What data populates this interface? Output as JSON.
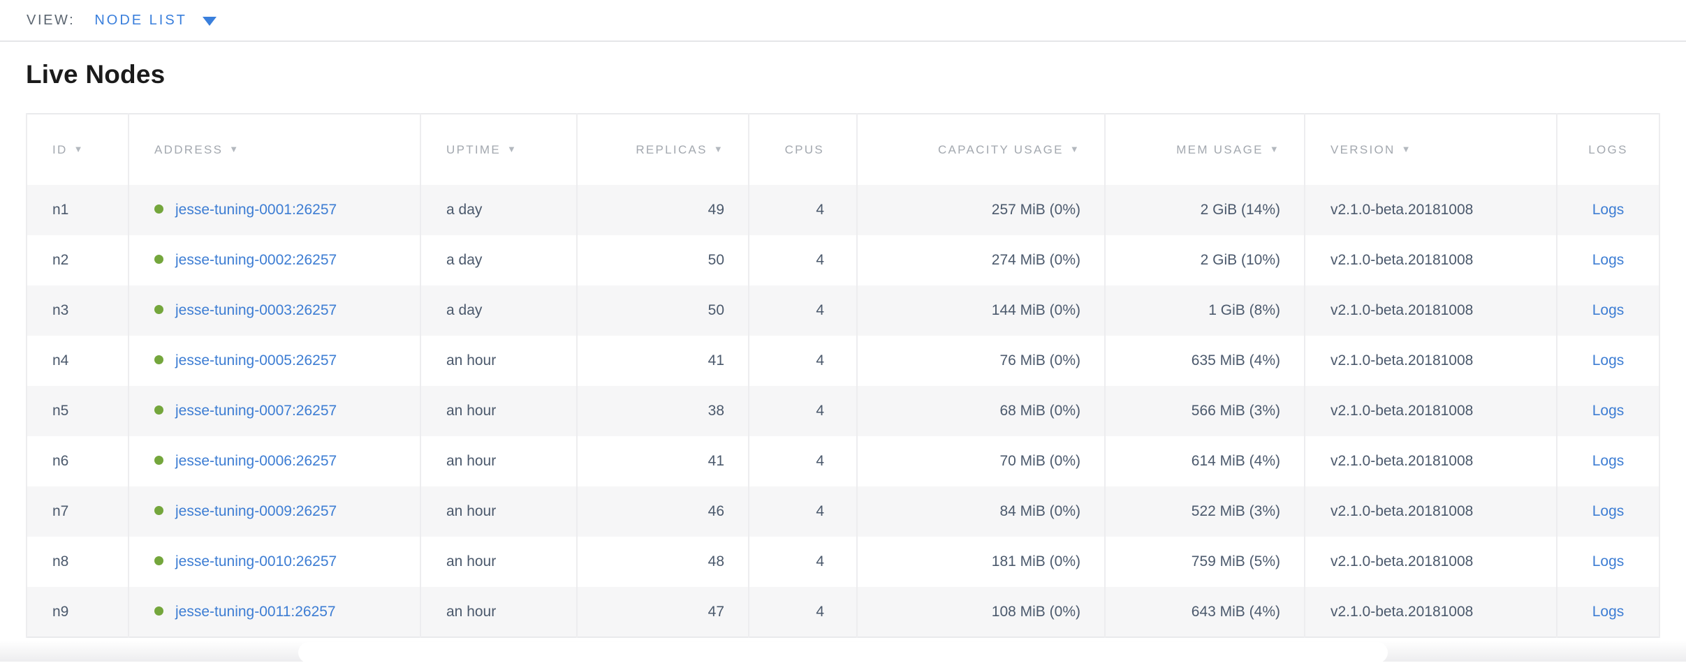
{
  "view_bar": {
    "label": "VIEW:",
    "selected_view": "NODE LIST"
  },
  "page_title": "Live Nodes",
  "table": {
    "sort_icon": "▼",
    "columns": [
      {
        "key": "id",
        "label": "ID",
        "sorted": true,
        "align": "left"
      },
      {
        "key": "address",
        "label": "ADDRESS",
        "sorted": true,
        "align": "left"
      },
      {
        "key": "uptime",
        "label": "UPTIME",
        "sorted": true,
        "align": "left"
      },
      {
        "key": "replicas",
        "label": "REPLICAS",
        "sorted": true,
        "align": "right"
      },
      {
        "key": "cpus",
        "label": "CPUS",
        "sorted": false,
        "align": "right"
      },
      {
        "key": "capacity_usage",
        "label": "CAPACITY USAGE",
        "sorted": true,
        "align": "right"
      },
      {
        "key": "mem_usage",
        "label": "MEM USAGE",
        "sorted": true,
        "align": "right"
      },
      {
        "key": "version",
        "label": "VERSION",
        "sorted": true,
        "align": "left"
      },
      {
        "key": "logs",
        "label": "LOGS",
        "sorted": false,
        "align": "center"
      }
    ],
    "rows": [
      {
        "id": "n1",
        "address": "jesse-tuning-0001:26257",
        "status": "live",
        "uptime": "a day",
        "replicas": "49",
        "cpus": "4",
        "capacity_usage": "257 MiB (0%)",
        "mem_usage": "2 GiB (14%)",
        "version": "v2.1.0-beta.20181008",
        "logs": "Logs"
      },
      {
        "id": "n2",
        "address": "jesse-tuning-0002:26257",
        "status": "live",
        "uptime": "a day",
        "replicas": "50",
        "cpus": "4",
        "capacity_usage": "274 MiB (0%)",
        "mem_usage": "2 GiB (10%)",
        "version": "v2.1.0-beta.20181008",
        "logs": "Logs"
      },
      {
        "id": "n3",
        "address": "jesse-tuning-0003:26257",
        "status": "live",
        "uptime": "a day",
        "replicas": "50",
        "cpus": "4",
        "capacity_usage": "144 MiB (0%)",
        "mem_usage": "1 GiB (8%)",
        "version": "v2.1.0-beta.20181008",
        "logs": "Logs"
      },
      {
        "id": "n4",
        "address": "jesse-tuning-0005:26257",
        "status": "live",
        "uptime": "an hour",
        "replicas": "41",
        "cpus": "4",
        "capacity_usage": "76 MiB (0%)",
        "mem_usage": "635 MiB (4%)",
        "version": "v2.1.0-beta.20181008",
        "logs": "Logs"
      },
      {
        "id": "n5",
        "address": "jesse-tuning-0007:26257",
        "status": "live",
        "uptime": "an hour",
        "replicas": "38",
        "cpus": "4",
        "capacity_usage": "68 MiB (0%)",
        "mem_usage": "566 MiB (3%)",
        "version": "v2.1.0-beta.20181008",
        "logs": "Logs"
      },
      {
        "id": "n6",
        "address": "jesse-tuning-0006:26257",
        "status": "live",
        "uptime": "an hour",
        "replicas": "41",
        "cpus": "4",
        "capacity_usage": "70 MiB (0%)",
        "mem_usage": "614 MiB (4%)",
        "version": "v2.1.0-beta.20181008",
        "logs": "Logs"
      },
      {
        "id": "n7",
        "address": "jesse-tuning-0009:26257",
        "status": "live",
        "uptime": "an hour",
        "replicas": "46",
        "cpus": "4",
        "capacity_usage": "84 MiB (0%)",
        "mem_usage": "522 MiB (3%)",
        "version": "v2.1.0-beta.20181008",
        "logs": "Logs"
      },
      {
        "id": "n8",
        "address": "jesse-tuning-0010:26257",
        "status": "live",
        "uptime": "an hour",
        "replicas": "48",
        "cpus": "4",
        "capacity_usage": "181 MiB (0%)",
        "mem_usage": "759 MiB (5%)",
        "version": "v2.1.0-beta.20181008",
        "logs": "Logs"
      },
      {
        "id": "n9",
        "address": "jesse-tuning-0011:26257",
        "status": "live",
        "uptime": "an hour",
        "replicas": "47",
        "cpus": "4",
        "capacity_usage": "108 MiB (0%)",
        "mem_usage": "643 MiB (4%)",
        "version": "v2.1.0-beta.20181008",
        "logs": "Logs"
      }
    ]
  },
  "colors": {
    "accent_blue": "#3a7fdc",
    "link_blue": "#3d7dd3",
    "live_node_green": "#74a63c",
    "header_text": "#a3a8af",
    "body_text": "#4b596c",
    "row_stripe": "#f6f6f7"
  }
}
